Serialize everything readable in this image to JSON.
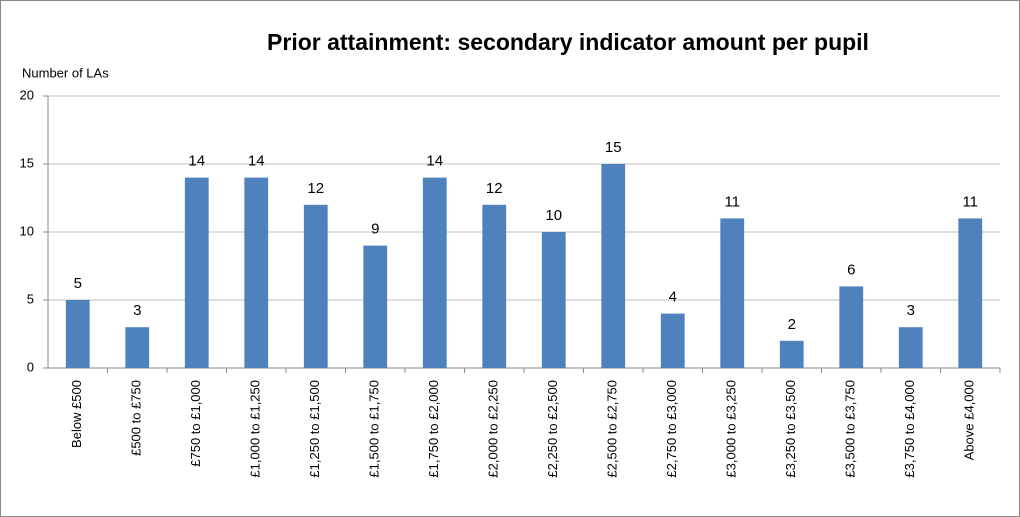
{
  "chart_data": {
    "type": "bar",
    "title": "Prior attainment: secondary indicator amount per pupil",
    "y_label": "Number of LAs",
    "categories": [
      "Below £500",
      "£500 to £750",
      "£750 to £1,000",
      "£1,000 to £1,250",
      "£1,250 to £1,500",
      "£1,500 to £1,750",
      "£1,750 to £2,000",
      "£2,000 to £2,250",
      "£2,250 to £2,500",
      "£2,500 to £2,750",
      "£2,750 to £3,000",
      "£3,000 to £3,250",
      "£3,250 to £3,500",
      "£3,500 to £3,750",
      "£3,750 to £4,000",
      "Above £4,000"
    ],
    "values": [
      5,
      3,
      14,
      14,
      12,
      9,
      14,
      12,
      10,
      15,
      4,
      11,
      2,
      6,
      3,
      11
    ],
    "color": "#4f81bd",
    "ylim": [
      0,
      20
    ],
    "yticks": [
      0,
      5,
      10,
      15,
      20
    ],
    "grid": true
  }
}
